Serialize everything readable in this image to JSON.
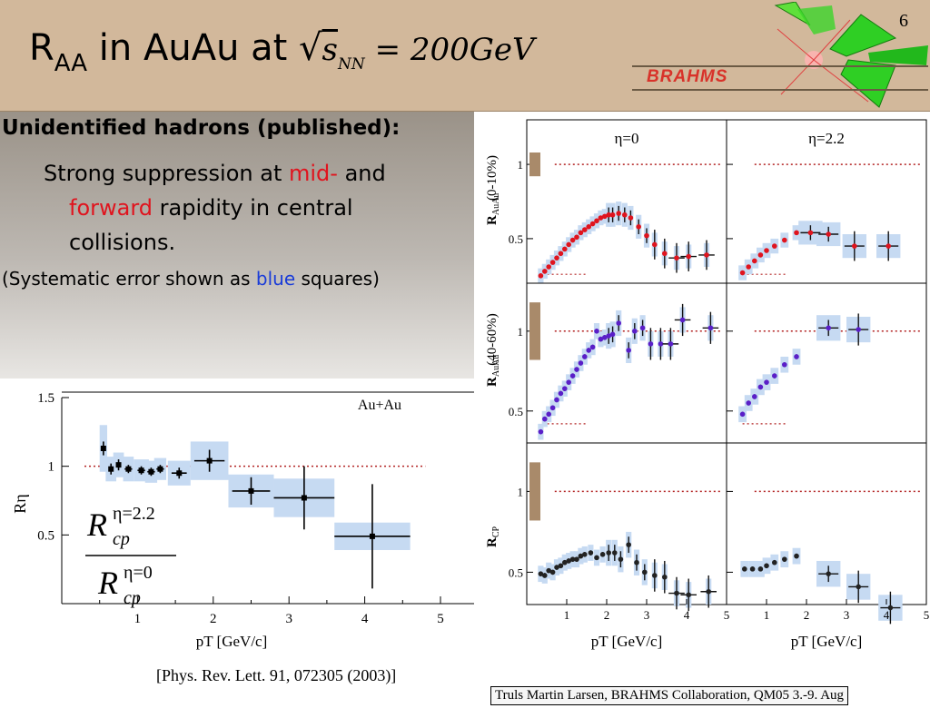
{
  "slide": {
    "number": "6",
    "title_main": "R",
    "title_sub": "AA",
    "title_rest": " in AuAu at ",
    "title_sqrt_s": "s",
    "title_sqrt_sub": "NN",
    "title_eq": "= 200GeV",
    "logo": "BRAHMS",
    "heading": "Unidentified hadrons (published):",
    "bullet_a": "Strong suppression at ",
    "bullet_mid": "mid-",
    "bullet_b": " and",
    "bullet_forward": "forward",
    "bullet_c": " rapidity in central",
    "bullet_d": "collisions.",
    "note_a": "(Systematic error shown as ",
    "note_blue": "blue",
    "note_b": " squares)",
    "citation": "[Phys. Rev. Lett. 91, 072305 (2003)]",
    "footer": "Truls Martin Larsen, BRAHMS Collaboration, QM05 3.-9. Aug",
    "colors": {
      "header": "#d2b89b",
      "systematic": "#c6daf2",
      "red_points": "#e0141e",
      "purple_points": "#5a1fc8",
      "reference": "#b22222"
    }
  },
  "chart_data": [
    {
      "type": "scatter",
      "panel": "left",
      "xlabel": "pT [GeV/c]",
      "ylabel": "Rη",
      "legend": "Au+Au",
      "ratio_numerator": "R",
      "ratio_numerator_sup": "η=2.2",
      "ratio_numerator_sub": "cp",
      "ratio_denominator": "R",
      "ratio_denominator_sup": "η=0",
      "ratio_denominator_sub": "cp",
      "xlim": [
        0,
        5
      ],
      "ylim": [
        0,
        1.5
      ],
      "xticks": [
        "1",
        "2",
        "3",
        "4",
        "5"
      ],
      "yticks": [
        "0.5",
        "1",
        "1.5"
      ],
      "reference_line": 1,
      "points": [
        {
          "x": 0.55,
          "y": 1.13,
          "xe": 0.0,
          "ye": 0.05,
          "sys": 0.17,
          "w": 0.05
        },
        {
          "x": 0.65,
          "y": 0.98,
          "xe": 0.0,
          "ye": 0.04,
          "sys": 0.09,
          "w": 0.07
        },
        {
          "x": 0.75,
          "y": 1.01,
          "xe": 0.0,
          "ye": 0.04,
          "sys": 0.09,
          "w": 0.07
        },
        {
          "x": 0.88,
          "y": 0.98,
          "xe": 0.05,
          "ye": 0.03,
          "sys": 0.09,
          "w": 0.07
        },
        {
          "x": 1.05,
          "y": 0.97,
          "xe": 0.05,
          "ye": 0.03,
          "sys": 0.08,
          "w": 0.1
        },
        {
          "x": 1.18,
          "y": 0.96,
          "xe": 0.05,
          "ye": 0.03,
          "sys": 0.08,
          "w": 0.08
        },
        {
          "x": 1.3,
          "y": 0.98,
          "xe": 0.05,
          "ye": 0.03,
          "sys": 0.08,
          "w": 0.08
        },
        {
          "x": 1.55,
          "y": 0.95,
          "xe": 0.1,
          "ye": 0.04,
          "sys": 0.09,
          "w": 0.15
        },
        {
          "x": 1.95,
          "y": 1.04,
          "xe": 0.2,
          "ye": 0.08,
          "sys": 0.14,
          "w": 0.25
        },
        {
          "x": 2.5,
          "y": 0.82,
          "xe": 0.25,
          "ye": 0.1,
          "sys": 0.12,
          "w": 0.3
        },
        {
          "x": 3.2,
          "y": 0.77,
          "xe": 0.4,
          "ye": 0.23,
          "sys": 0.14,
          "w": 0.4
        },
        {
          "x": 4.1,
          "y": 0.49,
          "xe": 0.5,
          "ye": 0.38,
          "sys": 0.1,
          "w": 0.5
        }
      ]
    },
    {
      "type": "scatter",
      "panel": "right-grid",
      "columns": [
        "η=0",
        "η=2.2"
      ],
      "xlabel": "pT [GeV/c]",
      "xlim": [
        0,
        5
      ],
      "xticks": [
        "1",
        "2",
        "3",
        "4",
        "5"
      ],
      "rows": [
        {
          "ylabel": "RAuAu",
          "ylabel_sub": "AuAu",
          "ylabel_main": "R",
          "centrality": "(0-10%)",
          "ylim": [
            0.2,
            1.3
          ],
          "yticks": [
            "0.5",
            "1"
          ],
          "reference_line": 1,
          "low_line": 0.26,
          "low_line_x": [
            0.4,
            1.5
          ],
          "norm_box": [
            0.92,
            1.08
          ],
          "color": "#e0141e",
          "cols": [
            {
              "points": [
                {
                  "x": 0.35,
                  "y": 0.25
                },
                {
                  "x": 0.45,
                  "y": 0.28
                },
                {
                  "x": 0.55,
                  "y": 0.31
                },
                {
                  "x": 0.65,
                  "y": 0.34
                },
                {
                  "x": 0.75,
                  "y": 0.37
                },
                {
                  "x": 0.85,
                  "y": 0.4
                },
                {
                  "x": 0.95,
                  "y": 0.43
                },
                {
                  "x": 1.05,
                  "y": 0.46
                },
                {
                  "x": 1.15,
                  "y": 0.49
                },
                {
                  "x": 1.25,
                  "y": 0.51
                },
                {
                  "x": 1.35,
                  "y": 0.54
                },
                {
                  "x": 1.45,
                  "y": 0.56
                },
                {
                  "x": 1.55,
                  "y": 0.58
                },
                {
                  "x": 1.65,
                  "y": 0.6
                },
                {
                  "x": 1.75,
                  "y": 0.62
                },
                {
                  "x": 1.85,
                  "y": 0.64
                },
                {
                  "x": 1.95,
                  "y": 0.65
                },
                {
                  "x": 2.05,
                  "y": 0.66
                },
                {
                  "x": 2.15,
                  "y": 0.66
                },
                {
                  "x": 2.3,
                  "y": 0.67
                },
                {
                  "x": 2.45,
                  "y": 0.66
                },
                {
                  "x": 2.6,
                  "y": 0.64
                },
                {
                  "x": 2.8,
                  "y": 0.58
                },
                {
                  "x": 3.0,
                  "y": 0.52
                },
                {
                  "x": 3.2,
                  "y": 0.46
                },
                {
                  "x": 3.45,
                  "y": 0.4
                },
                {
                  "x": 3.75,
                  "y": 0.37
                },
                {
                  "x": 4.05,
                  "y": 0.38
                },
                {
                  "x": 4.5,
                  "y": 0.39
                }
              ]
            },
            {
              "points": [
                {
                  "x": 0.4,
                  "y": 0.27
                },
                {
                  "x": 0.55,
                  "y": 0.31
                },
                {
                  "x": 0.7,
                  "y": 0.35
                },
                {
                  "x": 0.85,
                  "y": 0.39
                },
                {
                  "x": 1.0,
                  "y": 0.42
                },
                {
                  "x": 1.2,
                  "y": 0.45
                },
                {
                  "x": 1.45,
                  "y": 0.49
                },
                {
                  "x": 1.75,
                  "y": 0.54
                },
                {
                  "x": 2.1,
                  "y": 0.54
                },
                {
                  "x": 2.55,
                  "y": 0.53
                },
                {
                  "x": 3.2,
                  "y": 0.45
                },
                {
                  "x": 4.05,
                  "y": 0.45
                }
              ]
            }
          ]
        },
        {
          "ylabel_main": "R",
          "ylabel_sub": "AuAu",
          "centrality": "(40-60%)",
          "ylim": [
            0.3,
            1.3
          ],
          "yticks": [
            "0.5",
            "1"
          ],
          "reference_line": 1,
          "low_line": 0.42,
          "low_line_x": [
            0.4,
            1.5
          ],
          "norm_box": [
            0.82,
            1.18
          ],
          "color": "#5a1fc8",
          "cols": [
            {
              "points": [
                {
                  "x": 0.35,
                  "y": 0.37
                },
                {
                  "x": 0.45,
                  "y": 0.45
                },
                {
                  "x": 0.55,
                  "y": 0.48
                },
                {
                  "x": 0.65,
                  "y": 0.52
                },
                {
                  "x": 0.75,
                  "y": 0.57
                },
                {
                  "x": 0.85,
                  "y": 0.61
                },
                {
                  "x": 0.95,
                  "y": 0.64
                },
                {
                  "x": 1.05,
                  "y": 0.68
                },
                {
                  "x": 1.15,
                  "y": 0.72
                },
                {
                  "x": 1.25,
                  "y": 0.76
                },
                {
                  "x": 1.35,
                  "y": 0.8
                },
                {
                  "x": 1.45,
                  "y": 0.84
                },
                {
                  "x": 1.55,
                  "y": 0.88
                },
                {
                  "x": 1.65,
                  "y": 0.9
                },
                {
                  "x": 1.75,
                  "y": 1.0
                },
                {
                  "x": 1.85,
                  "y": 0.95
                },
                {
                  "x": 1.95,
                  "y": 0.96
                },
                {
                  "x": 2.05,
                  "y": 0.97
                },
                {
                  "x": 2.15,
                  "y": 0.98
                },
                {
                  "x": 2.3,
                  "y": 1.05
                },
                {
                  "x": 2.55,
                  "y": 0.88
                },
                {
                  "x": 2.7,
                  "y": 1.0
                },
                {
                  "x": 2.9,
                  "y": 1.02
                },
                {
                  "x": 3.1,
                  "y": 0.92
                },
                {
                  "x": 3.35,
                  "y": 0.92
                },
                {
                  "x": 3.6,
                  "y": 0.92
                },
                {
                  "x": 3.9,
                  "y": 1.07
                },
                {
                  "x": 4.6,
                  "y": 1.02
                }
              ]
            },
            {
              "points": [
                {
                  "x": 0.4,
                  "y": 0.48
                },
                {
                  "x": 0.55,
                  "y": 0.55
                },
                {
                  "x": 0.7,
                  "y": 0.59
                },
                {
                  "x": 0.85,
                  "y": 0.65
                },
                {
                  "x": 1.0,
                  "y": 0.68
                },
                {
                  "x": 1.2,
                  "y": 0.72
                },
                {
                  "x": 1.45,
                  "y": 0.79
                },
                {
                  "x": 1.75,
                  "y": 0.84
                },
                {
                  "x": 2.55,
                  "y": 1.02
                },
                {
                  "x": 3.3,
                  "y": 1.01
                }
              ]
            }
          ]
        },
        {
          "ylabel_main": "R",
          "ylabel_sub": "CP",
          "ylim": [
            0.3,
            1.3
          ],
          "yticks": [
            "0.5",
            "1"
          ],
          "reference_line": 1,
          "norm_box": [
            0.82,
            1.18
          ],
          "color": "#222222",
          "cols": [
            {
              "points": [
                {
                  "x": 0.35,
                  "y": 0.49
                },
                {
                  "x": 0.45,
                  "y": 0.48
                },
                {
                  "x": 0.55,
                  "y": 0.51
                },
                {
                  "x": 0.65,
                  "y": 0.5
                },
                {
                  "x": 0.75,
                  "y": 0.53
                },
                {
                  "x": 0.85,
                  "y": 0.54
                },
                {
                  "x": 0.95,
                  "y": 0.56
                },
                {
                  "x": 1.05,
                  "y": 0.57
                },
                {
                  "x": 1.15,
                  "y": 0.58
                },
                {
                  "x": 1.25,
                  "y": 0.58
                },
                {
                  "x": 1.35,
                  "y": 0.6
                },
                {
                  "x": 1.45,
                  "y": 0.61
                },
                {
                  "x": 1.6,
                  "y": 0.62
                },
                {
                  "x": 1.75,
                  "y": 0.59
                },
                {
                  "x": 1.9,
                  "y": 0.61
                },
                {
                  "x": 2.05,
                  "y": 0.62
                },
                {
                  "x": 2.2,
                  "y": 0.62
                },
                {
                  "x": 2.35,
                  "y": 0.58
                },
                {
                  "x": 2.55,
                  "y": 0.67
                },
                {
                  "x": 2.75,
                  "y": 0.56
                },
                {
                  "x": 2.95,
                  "y": 0.5
                },
                {
                  "x": 3.2,
                  "y": 0.48
                },
                {
                  "x": 3.45,
                  "y": 0.47
                },
                {
                  "x": 3.75,
                  "y": 0.37
                },
                {
                  "x": 4.05,
                  "y": 0.36
                },
                {
                  "x": 4.55,
                  "y": 0.38
                }
              ]
            },
            {
              "points": [
                {
                  "x": 0.45,
                  "y": 0.52
                },
                {
                  "x": 0.65,
                  "y": 0.52
                },
                {
                  "x": 0.85,
                  "y": 0.52
                },
                {
                  "x": 1.0,
                  "y": 0.54
                },
                {
                  "x": 1.2,
                  "y": 0.56
                },
                {
                  "x": 1.45,
                  "y": 0.58
                },
                {
                  "x": 1.75,
                  "y": 0.6
                },
                {
                  "x": 2.55,
                  "y": 0.49
                },
                {
                  "x": 3.3,
                  "y": 0.41
                },
                {
                  "x": 4.1,
                  "y": 0.28
                }
              ]
            }
          ]
        }
      ]
    }
  ]
}
